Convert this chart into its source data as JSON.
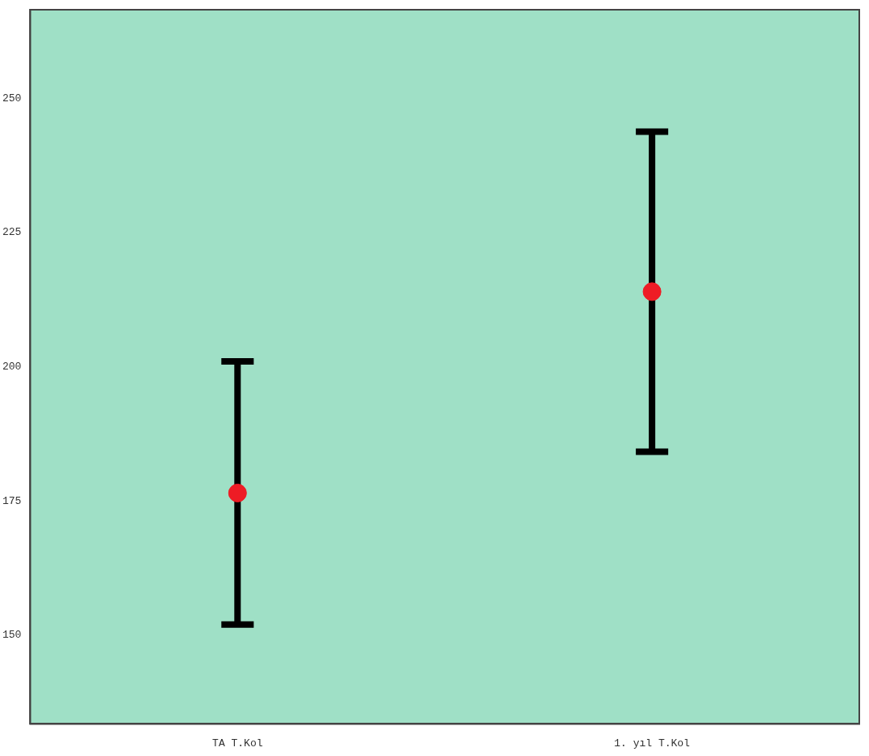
{
  "chart_data": {
    "type": "scatter",
    "categories": [
      "TA T.Kol",
      "1. yıl T.Kol"
    ],
    "series": [
      {
        "color": "#ee1c25",
        "values": [
          176.5,
          214
        ],
        "errors": [
          24.5,
          29.8
        ]
      }
    ],
    "marker": "circle",
    "ylim": [
      133.5,
      266.5
    ],
    "yticks": [
      150,
      175,
      200,
      225,
      250
    ]
  }
}
